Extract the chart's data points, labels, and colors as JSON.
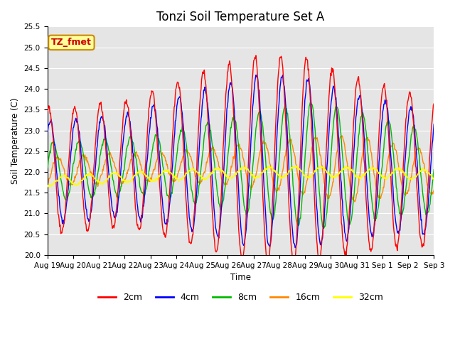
{
  "title": "Tonzi Soil Temperature Set A",
  "xlabel": "Time",
  "ylabel": "Soil Temperature (C)",
  "ylim": [
    20.0,
    25.5
  ],
  "background_color": "#ffffff",
  "plot_bg_color": "#e5e5e5",
  "annotation_label": "TZ_fmet",
  "annotation_bg": "#ffff99",
  "annotation_edge": "#cc8800",
  "annotation_text_color": "#cc0000",
  "series_colors": {
    "2cm": "#ff0000",
    "4cm": "#0000ff",
    "8cm": "#00bb00",
    "16cm": "#ff8800",
    "32cm": "#ffff00"
  },
  "xtick_labels": [
    "Aug 19",
    "Aug 20",
    "Aug 21",
    "Aug 22",
    "Aug 23",
    "Aug 24",
    "Aug 25",
    "Aug 26",
    "Aug 27",
    "Aug 28",
    "Aug 29",
    "Aug 30",
    "Aug 31",
    "Sep 1",
    "Sep 2",
    "Sep 3"
  ],
  "n_days": 15,
  "n_points": 720,
  "grid_color": "#ffffff",
  "title_fontsize": 12,
  "legend_fontsize": 9,
  "tick_fontsize": 7.5
}
